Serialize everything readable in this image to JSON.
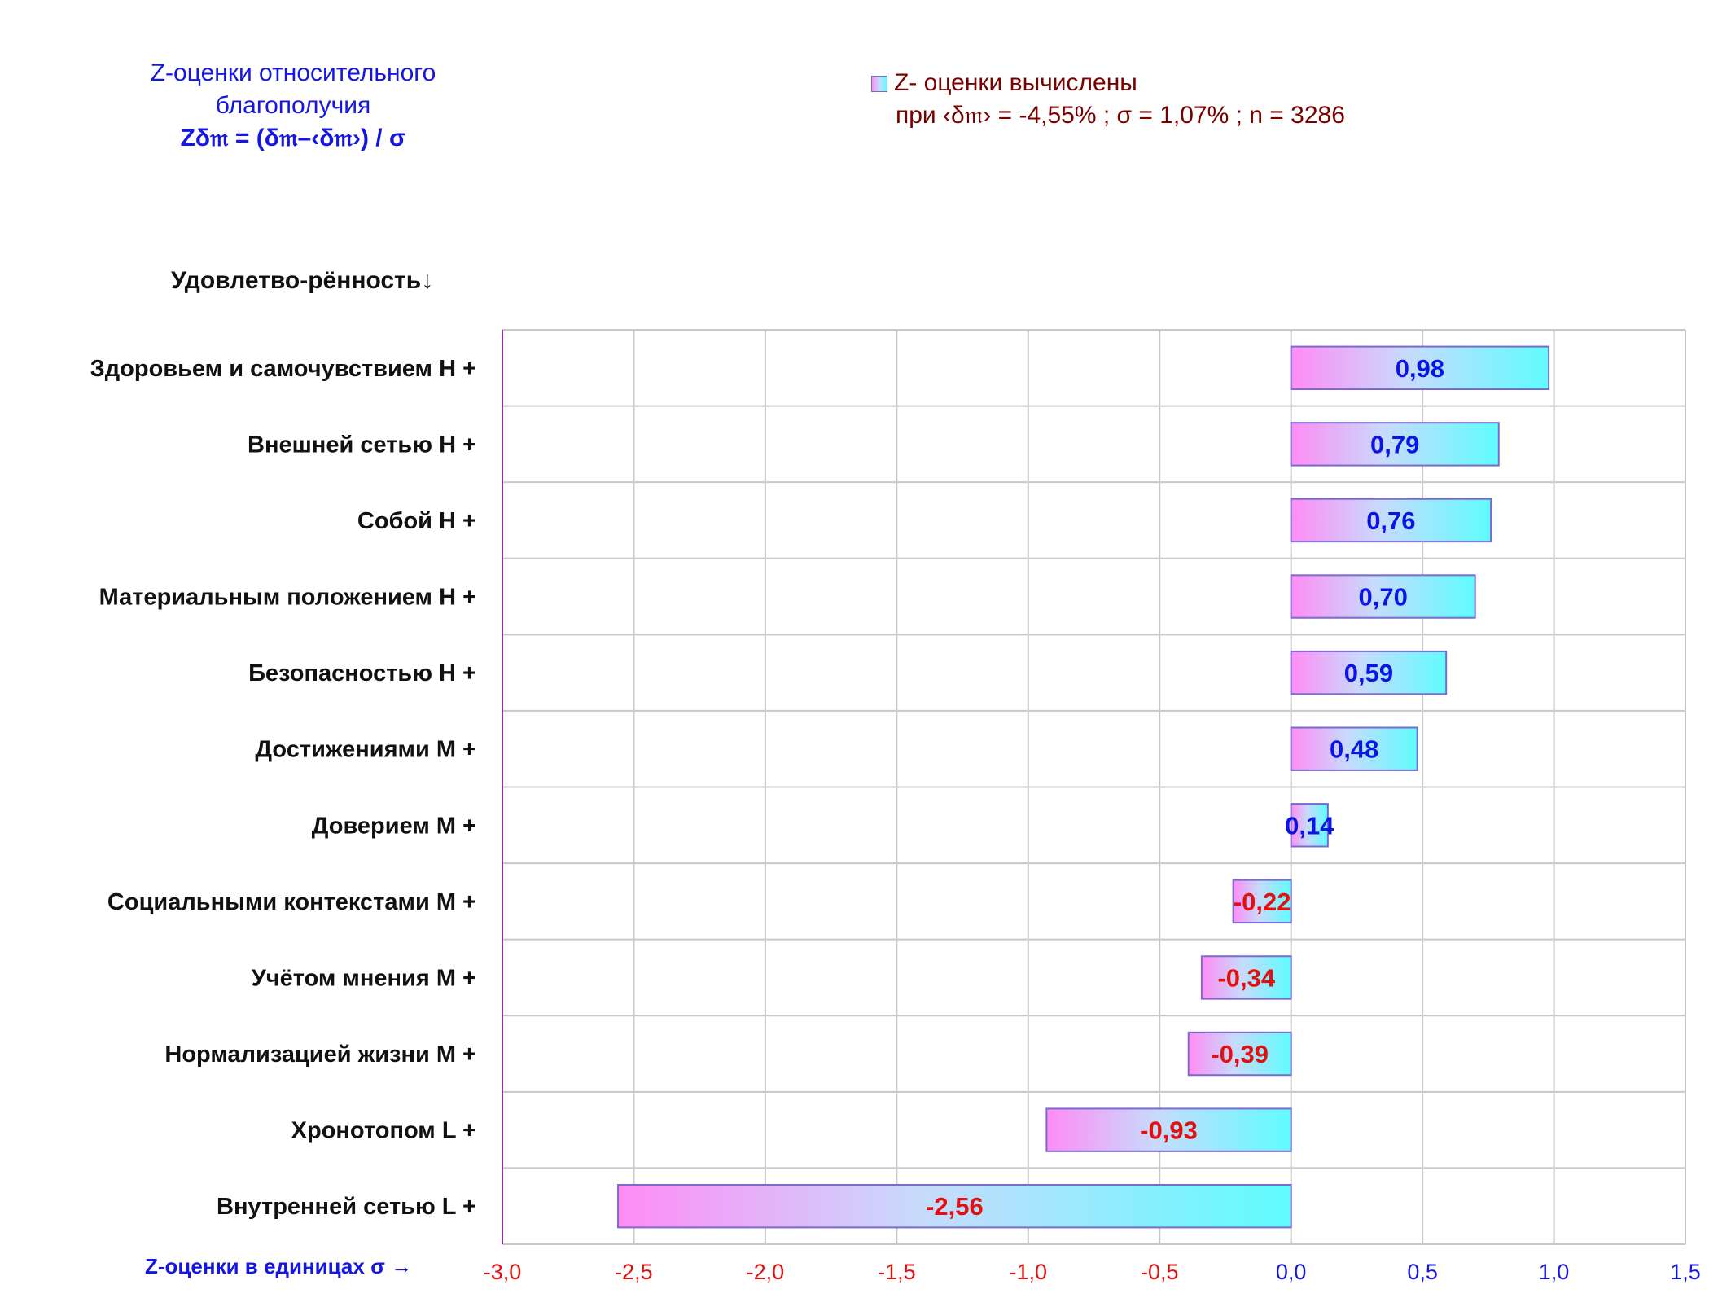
{
  "header": {
    "title_line1": "Z-оценки  относительного",
    "title_line2": "благополучия",
    "title_formula": "Zδ𝔪 = (δ𝔪–‹δ𝔪›)  / σ"
  },
  "legend": {
    "label": "Z- оценки вычислены",
    "params": "при ‹δ𝔪› = -4,55% ; σ = 1,07% ; n = 3286"
  },
  "chart_data": {
    "type": "bar",
    "orientation": "horizontal",
    "ylabel": "Удовлетво-рённость↓",
    "xlabel": "Z-оценки в единицах σ →",
    "categories": [
      "Здоровьем и самочувствием  H +",
      "Внешней сетью  H +",
      "Собой  H +",
      "Материальным положением  H +",
      "Безопасностью  H +",
      "Достижениями  M +",
      "Доверием  M +",
      "Социальными контекстами  M +",
      "Учётом мнения  M +",
      "Нормализацией жизни  M +",
      "Хронотопом  L +",
      "Внутренней сетью  L +"
    ],
    "values": [
      0.98,
      0.79,
      0.76,
      0.7,
      0.59,
      0.48,
      0.14,
      -0.22,
      -0.34,
      -0.39,
      -0.93,
      -2.56
    ],
    "value_labels": [
      "0,98",
      "0,79",
      "0,76",
      "0,70",
      "0,59",
      "0,48",
      "0,14",
      "-0,22",
      "-0,34",
      "-0,39",
      "-0,93",
      "-2,56"
    ],
    "xlim": [
      -3.0,
      1.5
    ],
    "xticks": [
      -3.0,
      -2.5,
      -2.0,
      -1.5,
      -1.0,
      -0.5,
      0.0,
      0.5,
      1.0,
      1.5
    ],
    "xtick_labels": [
      "-3,0",
      "-2,5",
      "-2,0",
      "-1,5",
      "-1,0",
      "-0,5",
      "0,0",
      "0,5",
      "1,0",
      "1,5"
    ],
    "grid": true,
    "legend_position": "top-right",
    "colors": {
      "bar_gradient_start": "#ff8cf5",
      "bar_gradient_mid": "#c7dbfc",
      "bar_gradient_end": "#5ffcff",
      "bar_border": "#7a6ad0",
      "positive_label": "#0a14e6",
      "negative_label": "#e60f0f",
      "negative_tick": "#e60f0f",
      "positive_tick": "#1515e6",
      "grid": "#c8c8c8",
      "axis": "#9a30b0"
    }
  }
}
